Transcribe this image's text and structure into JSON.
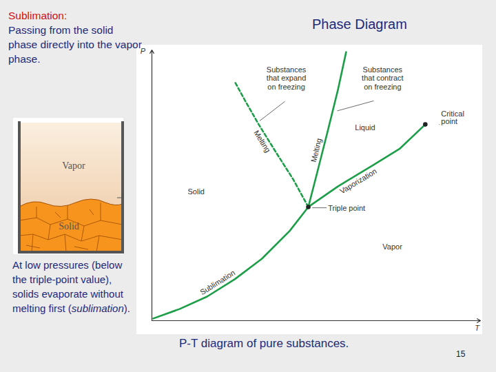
{
  "slide": {
    "title": "Phase Diagram",
    "term": "Sublimation:",
    "definition": "Passing from the solid phase directly into the vapor phase.",
    "note": {
      "before": "At low pressures (below the triple-point value), solids evaporate without melting first (",
      "emphasis": "sublimation",
      "after": ")."
    },
    "illustration": {
      "labels": [
        "Vapor",
        "Solid"
      ]
    },
    "caption": "P-T diagram of pure substances.",
    "page": 15
  },
  "chart_data": {
    "type": "line",
    "x_label": "T",
    "y_label": "P",
    "xlim": [
      0,
      100
    ],
    "ylim": [
      0,
      100
    ],
    "xticks": [],
    "yticks": [],
    "tick_labels": false,
    "grid": false,
    "series": [
      {
        "name": "Sublimation",
        "color": "#1c9e48",
        "line_style": "solid",
        "x": [
          0.4,
          8.4,
          16.8,
          25.2,
          33.5,
          41.9,
          47.6
        ],
        "values": [
          0.8,
          4.3,
          8.9,
          15.3,
          22.9,
          33.1,
          42.0
        ]
      },
      {
        "name": "Vaporization",
        "color": "#1c9e48",
        "line_style": "solid",
        "x": [
          47.6,
          56.6,
          67.1,
          75.5,
          83.2
        ],
        "values": [
          42.0,
          49.6,
          57.3,
          63.6,
          72.5
        ]
      },
      {
        "name": "Melting",
        "color": "#1c9e48",
        "line_style": "solid",
        "x": [
          47.6,
          50.3,
          53.5,
          56.6,
          59.1
        ],
        "values": [
          42.0,
          54.7,
          70.0,
          85.2,
          99.2
        ]
      },
      {
        "name": "Melting",
        "color": "#1c9e48",
        "line_style": "dashed",
        "x": [
          47.6,
          43.0,
          37.7,
          32.5,
          28.3,
          25.2
        ],
        "values": [
          42.0,
          52.2,
          62.3,
          72.5,
          81.4,
          88.3
        ]
      }
    ],
    "points": [
      {
        "label": "Triple point",
        "x": 47.6,
        "y": 42.0
      },
      {
        "label": "Critical\npoint",
        "x": 83.2,
        "y": 72.5
      }
    ],
    "annotations": [
      "Solid",
      "Liquid",
      "Vapor",
      "Substances\nthat expand\non freezing",
      "Substances\nthat contract\non freezing"
    ]
  }
}
